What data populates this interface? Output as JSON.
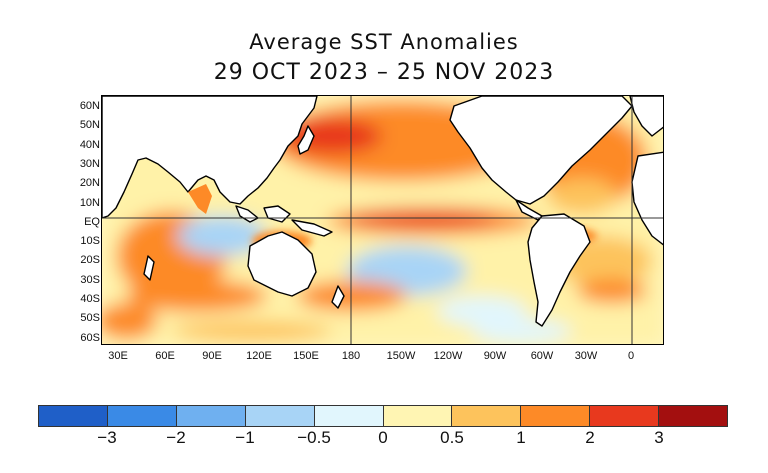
{
  "title": "Average SST Anomalies",
  "subtitle": "29 OCT 2023 – 25 NOV 2023",
  "lat_labels": [
    "60N",
    "50N",
    "40N",
    "30N",
    "20N",
    "10N",
    "EQ",
    "10S",
    "20S",
    "30S",
    "40S",
    "50S",
    "60S"
  ],
  "lon_labels": [
    "30E",
    "60E",
    "90E",
    "120E",
    "150E",
    "180",
    "150W",
    "120W",
    "90W",
    "60W",
    "30W",
    "0"
  ],
  "colorbar": {
    "colors": [
      "#1f5fc8",
      "#3a8ae6",
      "#6fb0f0",
      "#a8d4f6",
      "#e1f6fd",
      "#fff5b3",
      "#fdc35c",
      "#fd8a27",
      "#e8391e",
      "#a30f0f"
    ],
    "labels": [
      "−3",
      "−2",
      "−1",
      "−0.5",
      "0",
      "0.5",
      "1",
      "2",
      "3"
    ]
  },
  "colors": {
    "land": "#ffffff",
    "coast": "#000000"
  }
}
